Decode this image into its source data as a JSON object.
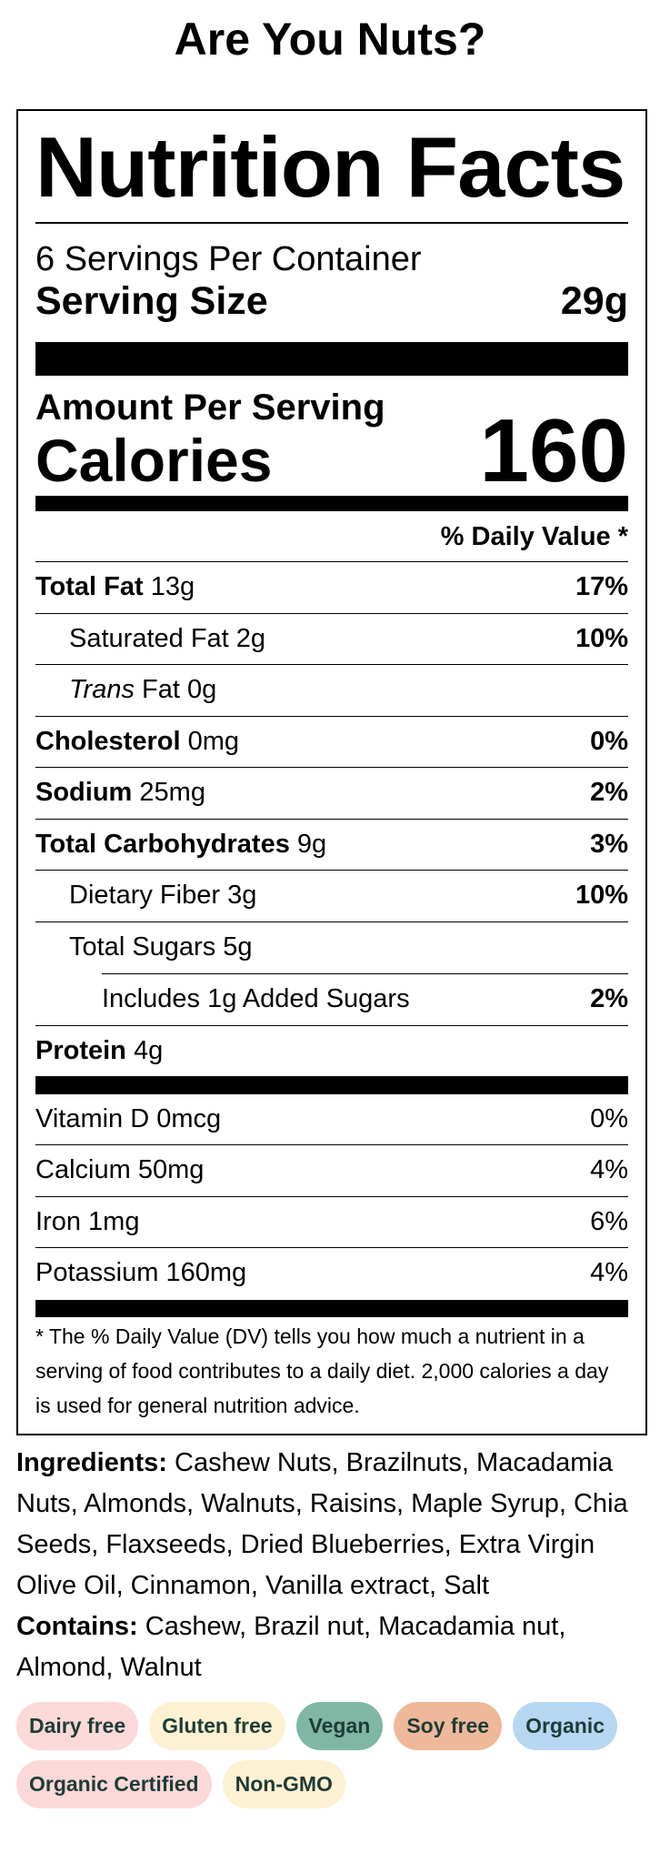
{
  "title": "Are You Nuts?",
  "label": {
    "heading": "Nutrition Facts",
    "servings": "6 Servings Per Container",
    "serving_size_label": "Serving Size",
    "serving_size_value": "29g",
    "amount_per_serving": "Amount Per Serving",
    "calories_label": "Calories",
    "calories_value": "160",
    "daily_value_header": "% Daily Value *",
    "nutrients": [
      {
        "name": "Total Fat",
        "amount": "13g",
        "dv": "17%"
      },
      {
        "name": "Saturated Fat",
        "amount": "2g",
        "dv": "10%"
      },
      {
        "name_italic": "Trans",
        "name": "Fat",
        "amount": "0g"
      },
      {
        "name": "Cholesterol",
        "amount": "0mg",
        "dv": "0%"
      },
      {
        "name": "Sodium",
        "amount": "25mg",
        "dv": "2%"
      },
      {
        "name": "Total Carbohydrates",
        "amount": "9g",
        "dv": "3%"
      },
      {
        "name": "Dietary Fiber",
        "amount": "3g",
        "dv": "10%"
      },
      {
        "name": "Total Sugars",
        "amount": "5g"
      },
      {
        "name": "Includes 1g Added Sugars",
        "dv": "2%"
      },
      {
        "name": "Protein",
        "amount": "4g"
      }
    ],
    "vitamins": [
      {
        "name": "Vitamin D",
        "amount": "0mcg",
        "dv": "0%"
      },
      {
        "name": "Calcium",
        "amount": "50mg",
        "dv": "4%"
      },
      {
        "name": "Iron",
        "amount": "1mg",
        "dv": "6%"
      },
      {
        "name": "Potassium",
        "amount": "160mg",
        "dv": "4%"
      }
    ],
    "footnote": "* The % Daily Value (DV) tells you how much a nutrient in a serving of food contributes to a daily diet. 2,000 calories a day is used for general nutrition advice."
  },
  "ingredients": {
    "label": "Ingredients:",
    "text": "Cashew Nuts, Brazilnuts, Macadamia Nuts, Almonds, Walnuts, Raisins, Maple Syrup, Chia Seeds, Flaxseeds, Dried Blueberries, Extra Virgin Olive Oil, Cinnamon, Vanilla extract, Salt"
  },
  "contains": {
    "label": "Contains:",
    "text": "Cashew, Brazil nut, Macadamia nut, Almond, Walnut"
  },
  "badges": [
    "Dairy free",
    "Gluten free",
    "Vegan",
    "Soy free",
    "Organic",
    "Organic Certified",
    "Non-GMO"
  ]
}
